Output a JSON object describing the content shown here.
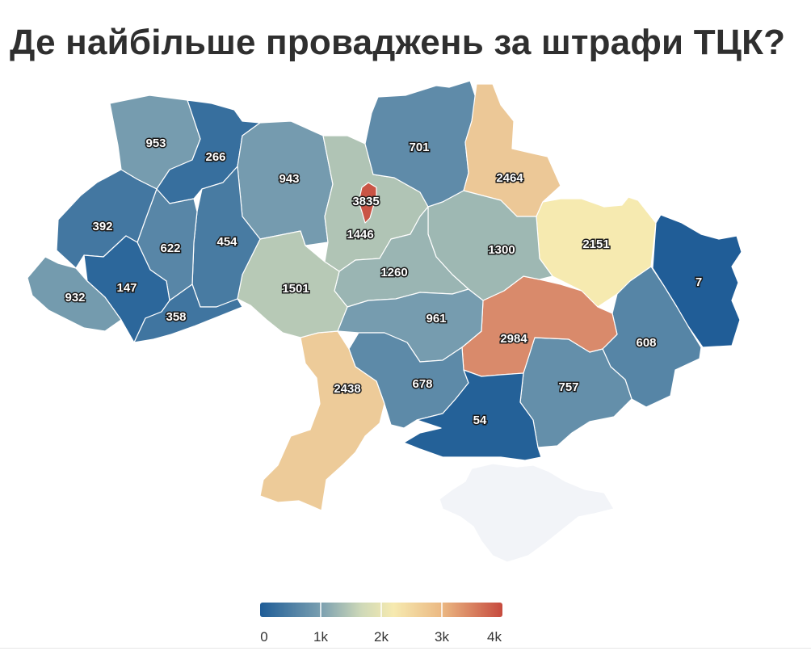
{
  "title": "Де найбільше проваджень за штрафи ТЦК?",
  "colors": {
    "low": "#1f5d97",
    "mid": "#f3efb6",
    "high": "#c64a3e",
    "no_data": "#f2f4f8"
  },
  "legend": {
    "min": 0,
    "max": 4000,
    "ticks": [
      {
        "value": 0,
        "label": "0"
      },
      {
        "value": 1000,
        "label": "1k"
      },
      {
        "value": 2000,
        "label": "2k"
      },
      {
        "value": 3000,
        "label": "3k"
      },
      {
        "value": 4000,
        "label": "4k"
      }
    ]
  },
  "regions": [
    {
      "id": "volyn",
      "value": 953,
      "label": "953"
    },
    {
      "id": "rivne",
      "value": 266,
      "label": "266"
    },
    {
      "id": "zhytomyr",
      "value": 943,
      "label": "943"
    },
    {
      "id": "kyiv-oblast",
      "value": 1446,
      "label": "1446"
    },
    {
      "id": "kyiv-city",
      "value": 3835,
      "label": "3835"
    },
    {
      "id": "chernihiv",
      "value": 701,
      "label": "701"
    },
    {
      "id": "sumy",
      "value": 2464,
      "label": "2464"
    },
    {
      "id": "kharkiv",
      "value": 2151,
      "label": "2151"
    },
    {
      "id": "luhansk",
      "value": 7,
      "label": "7"
    },
    {
      "id": "donetsk",
      "value": 608,
      "label": "608"
    },
    {
      "id": "zaporizhzhia",
      "value": 757,
      "label": "757"
    },
    {
      "id": "dnipro",
      "value": 2984,
      "label": "2984"
    },
    {
      "id": "poltava",
      "value": 1300,
      "label": "1300"
    },
    {
      "id": "cherkasy",
      "value": 1260,
      "label": "1260"
    },
    {
      "id": "kirovohrad",
      "value": 961,
      "label": "961"
    },
    {
      "id": "mykolaiv",
      "value": 678,
      "label": "678"
    },
    {
      "id": "kherson",
      "value": 54,
      "label": "54"
    },
    {
      "id": "odesa",
      "value": 2438,
      "label": "2438"
    },
    {
      "id": "vinnytsia",
      "value": 1501,
      "label": "1501"
    },
    {
      "id": "khmelnytskyi",
      "value": 454,
      "label": "454"
    },
    {
      "id": "ternopil",
      "value": 622,
      "label": "622"
    },
    {
      "id": "lviv",
      "value": 392,
      "label": "392"
    },
    {
      "id": "ivano-frankivsk",
      "value": 147,
      "label": "147"
    },
    {
      "id": "zakarpattia",
      "value": 932,
      "label": "932"
    },
    {
      "id": "chernivtsi",
      "value": 358,
      "label": "358"
    },
    {
      "id": "crimea",
      "value": null
    }
  ]
}
